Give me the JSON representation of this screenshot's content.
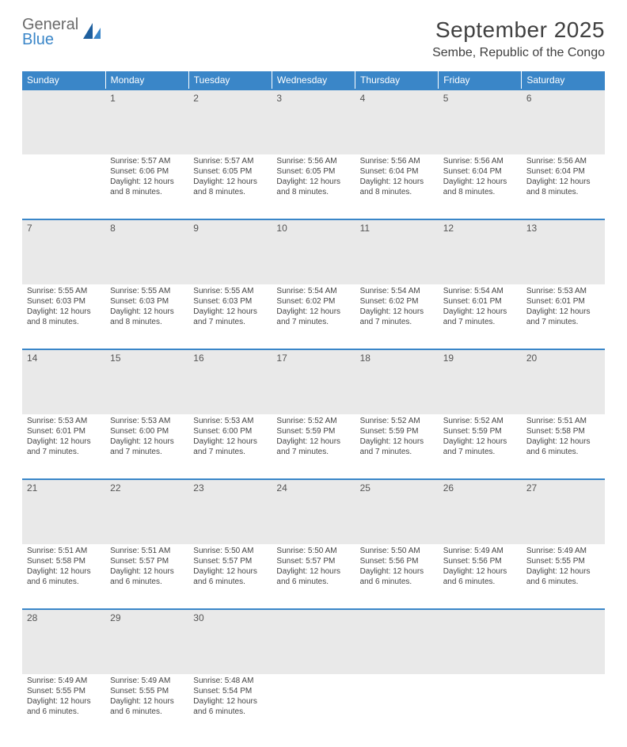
{
  "brand": {
    "line1": "General",
    "line2": "Blue"
  },
  "title": "September 2025",
  "location": "Sembe, Republic of the Congo",
  "colors": {
    "header_bg": "#3a86c8",
    "header_text": "#ffffff",
    "daynum_bg": "#e9e9e9",
    "border": "#3a86c8",
    "body_text": "#444444",
    "title_text": "#404040"
  },
  "fonts": {
    "base": "Arial",
    "title_size_pt": 21,
    "location_size_pt": 12,
    "header_size_pt": 9,
    "body_size_pt": 7.5
  },
  "headers": [
    "Sunday",
    "Monday",
    "Tuesday",
    "Wednesday",
    "Thursday",
    "Friday",
    "Saturday"
  ],
  "weeks": [
    [
      null,
      {
        "n": "1",
        "sr": "5:57 AM",
        "ss": "6:06 PM",
        "dl": "12 hours and 8 minutes."
      },
      {
        "n": "2",
        "sr": "5:57 AM",
        "ss": "6:05 PM",
        "dl": "12 hours and 8 minutes."
      },
      {
        "n": "3",
        "sr": "5:56 AM",
        "ss": "6:05 PM",
        "dl": "12 hours and 8 minutes."
      },
      {
        "n": "4",
        "sr": "5:56 AM",
        "ss": "6:04 PM",
        "dl": "12 hours and 8 minutes."
      },
      {
        "n": "5",
        "sr": "5:56 AM",
        "ss": "6:04 PM",
        "dl": "12 hours and 8 minutes."
      },
      {
        "n": "6",
        "sr": "5:56 AM",
        "ss": "6:04 PM",
        "dl": "12 hours and 8 minutes."
      }
    ],
    [
      {
        "n": "7",
        "sr": "5:55 AM",
        "ss": "6:03 PM",
        "dl": "12 hours and 8 minutes."
      },
      {
        "n": "8",
        "sr": "5:55 AM",
        "ss": "6:03 PM",
        "dl": "12 hours and 8 minutes."
      },
      {
        "n": "9",
        "sr": "5:55 AM",
        "ss": "6:03 PM",
        "dl": "12 hours and 7 minutes."
      },
      {
        "n": "10",
        "sr": "5:54 AM",
        "ss": "6:02 PM",
        "dl": "12 hours and 7 minutes."
      },
      {
        "n": "11",
        "sr": "5:54 AM",
        "ss": "6:02 PM",
        "dl": "12 hours and 7 minutes."
      },
      {
        "n": "12",
        "sr": "5:54 AM",
        "ss": "6:01 PM",
        "dl": "12 hours and 7 minutes."
      },
      {
        "n": "13",
        "sr": "5:53 AM",
        "ss": "6:01 PM",
        "dl": "12 hours and 7 minutes."
      }
    ],
    [
      {
        "n": "14",
        "sr": "5:53 AM",
        "ss": "6:01 PM",
        "dl": "12 hours and 7 minutes."
      },
      {
        "n": "15",
        "sr": "5:53 AM",
        "ss": "6:00 PM",
        "dl": "12 hours and 7 minutes."
      },
      {
        "n": "16",
        "sr": "5:53 AM",
        "ss": "6:00 PM",
        "dl": "12 hours and 7 minutes."
      },
      {
        "n": "17",
        "sr": "5:52 AM",
        "ss": "5:59 PM",
        "dl": "12 hours and 7 minutes."
      },
      {
        "n": "18",
        "sr": "5:52 AM",
        "ss": "5:59 PM",
        "dl": "12 hours and 7 minutes."
      },
      {
        "n": "19",
        "sr": "5:52 AM",
        "ss": "5:59 PM",
        "dl": "12 hours and 7 minutes."
      },
      {
        "n": "20",
        "sr": "5:51 AM",
        "ss": "5:58 PM",
        "dl": "12 hours and 6 minutes."
      }
    ],
    [
      {
        "n": "21",
        "sr": "5:51 AM",
        "ss": "5:58 PM",
        "dl": "12 hours and 6 minutes."
      },
      {
        "n": "22",
        "sr": "5:51 AM",
        "ss": "5:57 PM",
        "dl": "12 hours and 6 minutes."
      },
      {
        "n": "23",
        "sr": "5:50 AM",
        "ss": "5:57 PM",
        "dl": "12 hours and 6 minutes."
      },
      {
        "n": "24",
        "sr": "5:50 AM",
        "ss": "5:57 PM",
        "dl": "12 hours and 6 minutes."
      },
      {
        "n": "25",
        "sr": "5:50 AM",
        "ss": "5:56 PM",
        "dl": "12 hours and 6 minutes."
      },
      {
        "n": "26",
        "sr": "5:49 AM",
        "ss": "5:56 PM",
        "dl": "12 hours and 6 minutes."
      },
      {
        "n": "27",
        "sr": "5:49 AM",
        "ss": "5:55 PM",
        "dl": "12 hours and 6 minutes."
      }
    ],
    [
      {
        "n": "28",
        "sr": "5:49 AM",
        "ss": "5:55 PM",
        "dl": "12 hours and 6 minutes."
      },
      {
        "n": "29",
        "sr": "5:49 AM",
        "ss": "5:55 PM",
        "dl": "12 hours and 6 minutes."
      },
      {
        "n": "30",
        "sr": "5:48 AM",
        "ss": "5:54 PM",
        "dl": "12 hours and 6 minutes."
      },
      null,
      null,
      null,
      null
    ]
  ]
}
